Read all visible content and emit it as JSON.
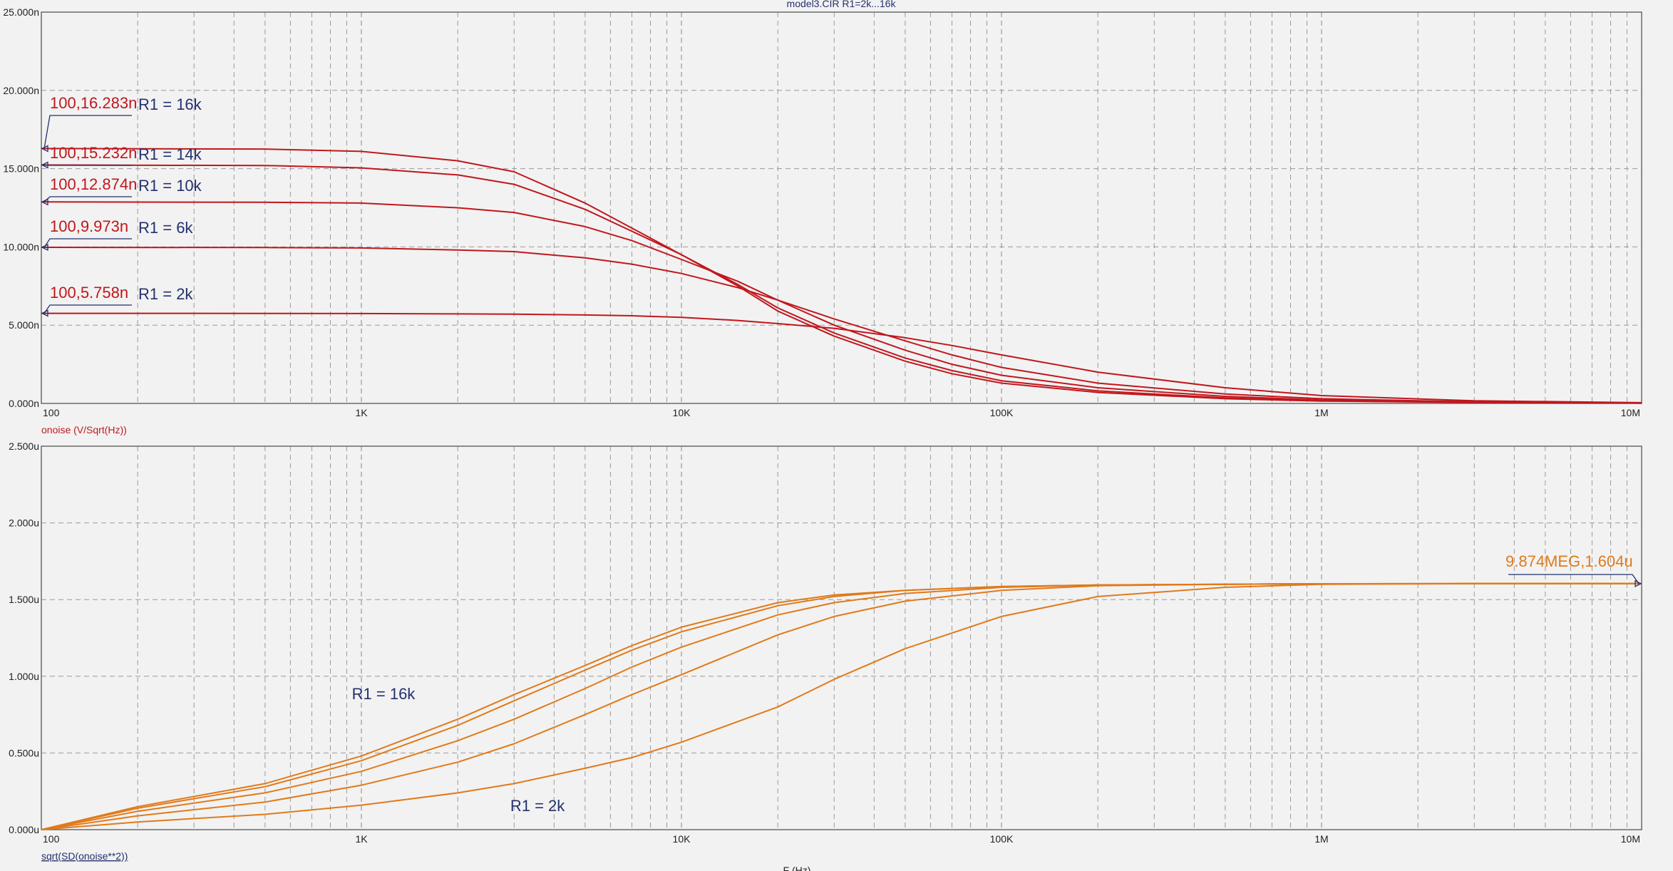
{
  "window": {
    "title": "model3.CIR R1=2k...16k",
    "colors": {
      "background": "#f2f2f2",
      "grid": "#9a9a9a",
      "frame": "#6a6a6a",
      "red_trace": "#c0171c",
      "orange_trace": "#e07a1a",
      "label_blue": "#24306e"
    }
  },
  "xaxis": {
    "label": "F (Hz)",
    "scale": "log",
    "range": [
      100,
      10000000
    ],
    "ticks": [
      {
        "value": 100,
        "label": "100"
      },
      {
        "value": 1000,
        "label": "1K"
      },
      {
        "value": 10000,
        "label": "10K"
      },
      {
        "value": 100000,
        "label": "100K"
      },
      {
        "value": 1000000,
        "label": "1M"
      },
      {
        "value": 10000000,
        "label": "10M"
      }
    ]
  },
  "chart_data": [
    {
      "type": "line",
      "ylabel": "onoise (V/Sqrt(Hz))",
      "xscale": "log",
      "xlim": [
        100,
        10000000
      ],
      "ylim": [
        0,
        25
      ],
      "yunit": "n",
      "grid": true,
      "yticks": [
        {
          "value": 0,
          "label": "0.000n"
        },
        {
          "value": 5,
          "label": "5.000n"
        },
        {
          "value": 10,
          "label": "10.000n"
        },
        {
          "value": 15,
          "label": "15.000n"
        },
        {
          "value": 20,
          "label": "20.000n"
        },
        {
          "value": 25,
          "label": "25.000n"
        }
      ],
      "series": [
        {
          "name": "R1 = 16k",
          "color": "#c0171c",
          "x": [
            100,
            500,
            1000,
            2000,
            3000,
            5000,
            7000,
            10000,
            15000,
            20000,
            30000,
            50000,
            70000,
            100000,
            200000,
            500000,
            1000000,
            3000000,
            10000000
          ],
          "y": [
            16.283,
            16.25,
            16.1,
            15.5,
            14.8,
            12.8,
            11.2,
            9.5,
            7.5,
            5.9,
            4.3,
            2.7,
            1.9,
            1.3,
            0.7,
            0.3,
            0.15,
            0.06,
            0.02
          ]
        },
        {
          "name": "R1 = 14k",
          "color": "#c0171c",
          "x": [
            100,
            500,
            1000,
            2000,
            3000,
            5000,
            7000,
            10000,
            15000,
            20000,
            30000,
            50000,
            70000,
            100000,
            200000,
            500000,
            1000000,
            3000000,
            10000000
          ],
          "y": [
            15.232,
            15.2,
            15.05,
            14.6,
            14.0,
            12.4,
            11.0,
            9.5,
            7.6,
            6.1,
            4.5,
            2.9,
            2.1,
            1.45,
            0.8,
            0.35,
            0.17,
            0.07,
            0.02
          ]
        },
        {
          "name": "R1 = 10k",
          "color": "#c0171c",
          "x": [
            100,
            500,
            1000,
            2000,
            3000,
            5000,
            7000,
            10000,
            15000,
            20000,
            30000,
            50000,
            70000,
            100000,
            200000,
            500000,
            1000000,
            3000000,
            10000000
          ],
          "y": [
            12.874,
            12.85,
            12.8,
            12.5,
            12.2,
            11.3,
            10.4,
            9.2,
            7.8,
            6.6,
            5.0,
            3.4,
            2.5,
            1.8,
            1.0,
            0.45,
            0.22,
            0.08,
            0.03
          ]
        },
        {
          "name": "R1 = 6k",
          "color": "#c0171c",
          "x": [
            100,
            500,
            1000,
            2000,
            3000,
            5000,
            7000,
            10000,
            15000,
            20000,
            30000,
            50000,
            70000,
            100000,
            200000,
            500000,
            1000000,
            3000000,
            10000000
          ],
          "y": [
            9.973,
            9.96,
            9.93,
            9.8,
            9.7,
            9.3,
            8.9,
            8.3,
            7.4,
            6.6,
            5.4,
            4.0,
            3.1,
            2.3,
            1.3,
            0.6,
            0.3,
            0.1,
            0.03
          ]
        },
        {
          "name": "R1 = 2k",
          "color": "#c0171c",
          "x": [
            100,
            500,
            1000,
            2000,
            3000,
            5000,
            7000,
            10000,
            15000,
            20000,
            30000,
            50000,
            70000,
            100000,
            200000,
            500000,
            1000000,
            3000000,
            10000000
          ],
          "y": [
            5.758,
            5.75,
            5.74,
            5.72,
            5.7,
            5.65,
            5.6,
            5.5,
            5.3,
            5.1,
            4.8,
            4.2,
            3.7,
            3.1,
            2.0,
            1.0,
            0.5,
            0.17,
            0.05
          ]
        }
      ],
      "annotations": [
        {
          "coord_label": "100,16.283n",
          "series_label": "R1 = 16k",
          "x": 100,
          "y": 16.283
        },
        {
          "coord_label": "100,15.232n",
          "series_label": "R1 = 14k",
          "x": 100,
          "y": 15.232
        },
        {
          "coord_label": "100,12.874n",
          "series_label": "R1 = 10k",
          "x": 100,
          "y": 12.874
        },
        {
          "coord_label": "100,9.973n",
          "series_label": "R1 = 6k",
          "x": 100,
          "y": 9.973
        },
        {
          "coord_label": "100,5.758n",
          "series_label": "R1 = 2k",
          "x": 100,
          "y": 5.758
        }
      ]
    },
    {
      "type": "line",
      "ylabel": "sqrt(SD(onoise**2))",
      "xscale": "log",
      "xlim": [
        100,
        10000000
      ],
      "ylim": [
        0,
        2.5
      ],
      "yunit": "u",
      "grid": true,
      "yticks": [
        {
          "value": 0,
          "label": "0.000u"
        },
        {
          "value": 0.5,
          "label": "0.500u"
        },
        {
          "value": 1.0,
          "label": "1.000u"
        },
        {
          "value": 1.5,
          "label": "1.500u"
        },
        {
          "value": 2.0,
          "label": "2.000u"
        },
        {
          "value": 2.5,
          "label": "2.500u"
        }
      ],
      "series": [
        {
          "name": "R1 = 16k",
          "color": "#e07a1a",
          "x": [
            100,
            200,
            500,
            1000,
            2000,
            3000,
            5000,
            7000,
            10000,
            20000,
            30000,
            50000,
            100000,
            200000,
            500000,
            1000000,
            3000000,
            10000000
          ],
          "y": [
            0,
            0.15,
            0.3,
            0.48,
            0.72,
            0.88,
            1.07,
            1.2,
            1.32,
            1.48,
            1.53,
            1.56,
            1.585,
            1.595,
            1.6,
            1.603,
            1.604,
            1.604
          ]
        },
        {
          "name": "",
          "color": "#e07a1a",
          "x": [
            100,
            200,
            500,
            1000,
            2000,
            3000,
            5000,
            7000,
            10000,
            20000,
            30000,
            50000,
            100000,
            200000,
            500000,
            1000000,
            3000000,
            10000000
          ],
          "y": [
            0,
            0.14,
            0.28,
            0.45,
            0.68,
            0.84,
            1.04,
            1.17,
            1.29,
            1.46,
            1.52,
            1.56,
            1.585,
            1.595,
            1.6,
            1.603,
            1.604,
            1.604
          ]
        },
        {
          "name": "",
          "color": "#e07a1a",
          "x": [
            100,
            200,
            500,
            1000,
            2000,
            3000,
            5000,
            7000,
            10000,
            20000,
            30000,
            50000,
            100000,
            200000,
            500000,
            1000000,
            3000000,
            10000000
          ],
          "y": [
            0,
            0.12,
            0.24,
            0.38,
            0.58,
            0.72,
            0.92,
            1.06,
            1.19,
            1.4,
            1.48,
            1.54,
            1.58,
            1.595,
            1.6,
            1.603,
            1.604,
            1.604
          ]
        },
        {
          "name": "",
          "color": "#e07a1a",
          "x": [
            100,
            200,
            500,
            1000,
            2000,
            3000,
            5000,
            7000,
            10000,
            20000,
            30000,
            50000,
            100000,
            200000,
            500000,
            1000000,
            3000000,
            10000000
          ],
          "y": [
            0,
            0.09,
            0.18,
            0.29,
            0.44,
            0.56,
            0.75,
            0.88,
            1.01,
            1.27,
            1.39,
            1.49,
            1.56,
            1.59,
            1.6,
            1.603,
            1.604,
            1.604
          ]
        },
        {
          "name": "R1 = 2k",
          "color": "#e07a1a",
          "x": [
            100,
            200,
            500,
            1000,
            2000,
            3000,
            5000,
            7000,
            10000,
            20000,
            30000,
            50000,
            100000,
            200000,
            500000,
            1000000,
            3000000,
            10000000
          ],
          "y": [
            0,
            0.05,
            0.1,
            0.16,
            0.24,
            0.3,
            0.4,
            0.47,
            0.57,
            0.8,
            0.98,
            1.18,
            1.39,
            1.52,
            1.58,
            1.6,
            1.604,
            1.604
          ]
        }
      ],
      "annotations": [
        {
          "coord_label": "9.874MEG,1.604u",
          "x": 9874000,
          "y": 1.604
        }
      ],
      "curve_labels": [
        {
          "text": "R1 = 16k",
          "x": 1600,
          "y": 0.85
        },
        {
          "text": "R1 = 2k",
          "x": 5000,
          "y": 0.12
        }
      ]
    }
  ]
}
